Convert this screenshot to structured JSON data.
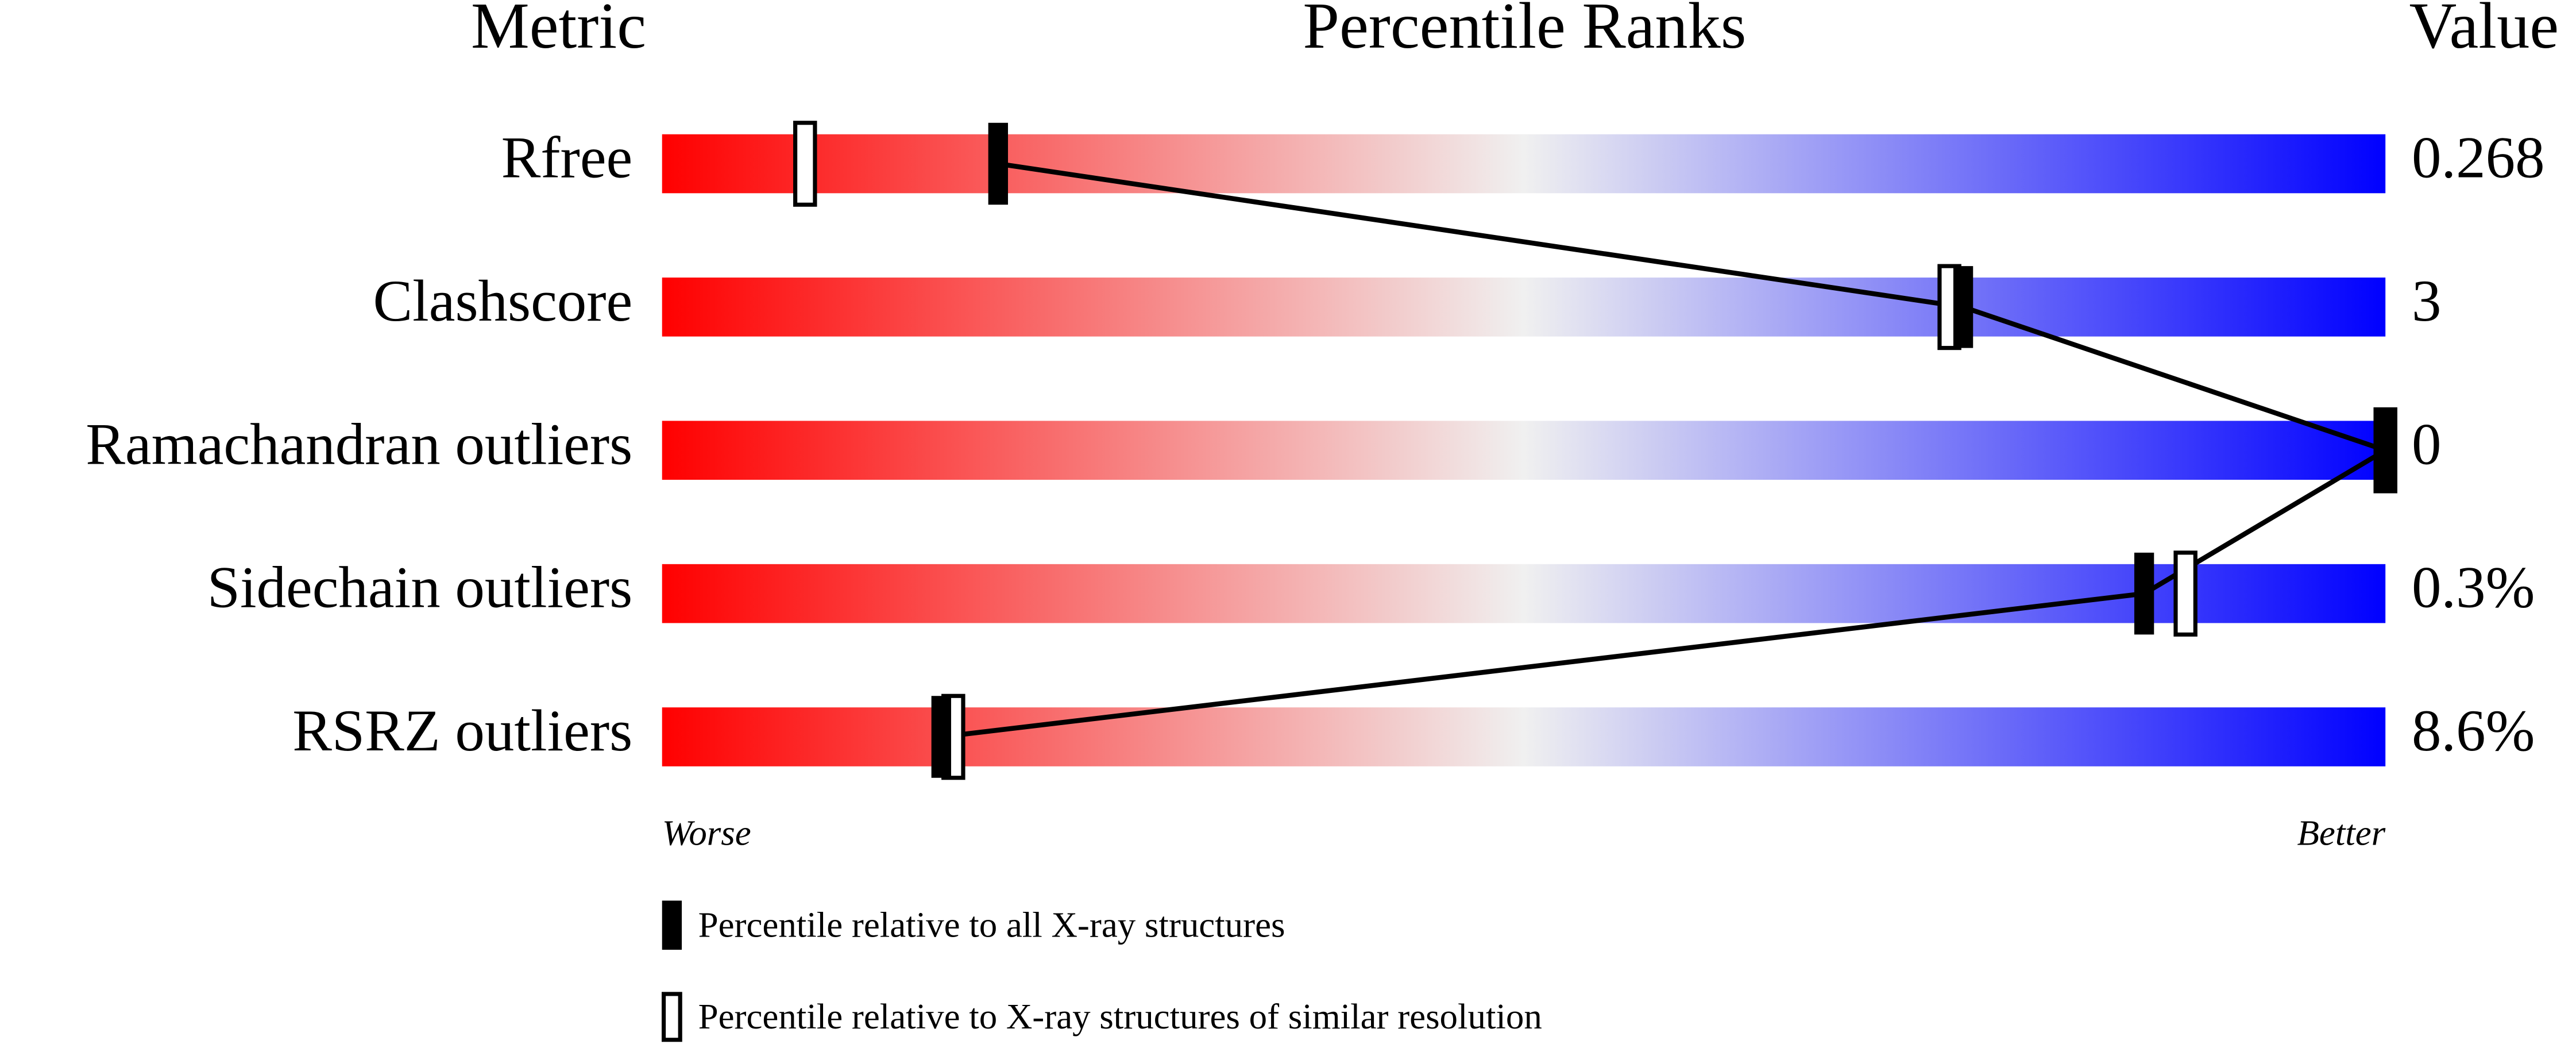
{
  "chart_data": {
    "type": "percentile-slider",
    "headers": [
      "Metric",
      "Percentile Ranks",
      "Value"
    ],
    "categories": [
      "Rfree",
      "Clashscore",
      "Ramachandran outliers",
      "Sidechain outliers",
      "RSRZ outliers"
    ],
    "metric_values": [
      0.268,
      3,
      0,
      {
        "value": 0.3,
        "label": "0.3%"
      },
      {
        "value": 8.6,
        "label": "8.6%"
      }
    ],
    "series": [
      {
        "name": "Percentile relative to all X-ray structures",
        "style": "filled",
        "color": "#000000",
        "values": [
          19.5,
          75.5,
          100,
          86,
          16.2
        ]
      },
      {
        "name": "Percentile relative to X-ray structures of similar resolution",
        "style": "open",
        "color": "#000000",
        "values": [
          8.3,
          74.7,
          100,
          88.4,
          16.9
        ]
      }
    ],
    "xlim": [
      0,
      100
    ],
    "scale_labels": [
      "Worse",
      "Better"
    ],
    "gradient": [
      "#ff0000",
      "#f0f0f0",
      "#0000ff"
    ]
  }
}
